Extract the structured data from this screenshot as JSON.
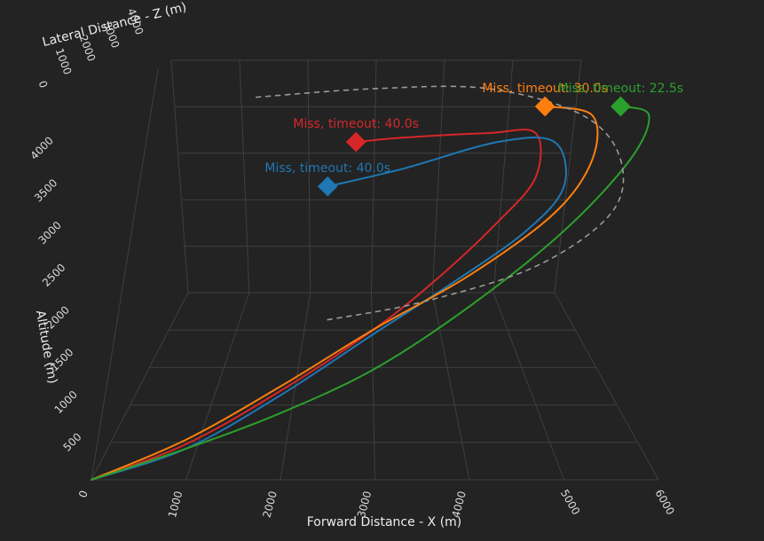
{
  "chart_data": {
    "type": "line3d",
    "axes": {
      "x": {
        "label": "Forward Distance - X (m)",
        "range": [
          0,
          6000
        ],
        "ticks": [
          0,
          1000,
          2000,
          3000,
          4000,
          5000,
          6000
        ]
      },
      "y": {
        "label": "Altitude (m)",
        "range": [
          0,
          4200
        ],
        "ticks": [
          0,
          500,
          1000,
          1500,
          2000,
          2500,
          3000,
          3500,
          4000
        ]
      },
      "z": {
        "label": "Lateral Distance - Z (m)",
        "range": [
          0,
          4200
        ],
        "ticks": [
          0,
          1000,
          2000,
          3000,
          4000
        ]
      }
    },
    "grid": true,
    "background": "#232323",
    "series": [
      {
        "color": "#d62728",
        "annotation": "Miss, timeout: 40.0s",
        "points": [
          {
            "x": 0,
            "y": 0
          },
          {
            "x": 1000,
            "y": 400
          },
          {
            "x": 2000,
            "y": 1000
          },
          {
            "x": 3000,
            "y": 1700
          },
          {
            "x": 3700,
            "y": 2300
          },
          {
            "x": 4300,
            "y": 2900
          },
          {
            "x": 4700,
            "y": 3400
          },
          {
            "x": 4700,
            "y": 3900
          },
          {
            "x": 4200,
            "y": 3900
          },
          {
            "x": 3300,
            "y": 3850
          },
          {
            "x": 2800,
            "y": 3800
          }
        ]
      },
      {
        "color": "#1f77b4",
        "annotation": "Miss, timeout: 40.0s",
        "points": [
          {
            "x": 0,
            "y": 0
          },
          {
            "x": 1000,
            "y": 350
          },
          {
            "x": 2000,
            "y": 950
          },
          {
            "x": 3000,
            "y": 1650
          },
          {
            "x": 3800,
            "y": 2200
          },
          {
            "x": 4600,
            "y": 2800
          },
          {
            "x": 5000,
            "y": 3300
          },
          {
            "x": 4900,
            "y": 3800
          },
          {
            "x": 4300,
            "y": 3800
          },
          {
            "x": 3300,
            "y": 3500
          },
          {
            "x": 2500,
            "y": 3300
          }
        ]
      },
      {
        "color": "#ff7f0e",
        "annotation": "Miss, timeout: 30.0s",
        "points": [
          {
            "x": 0,
            "y": 0
          },
          {
            "x": 1000,
            "y": 450
          },
          {
            "x": 2000,
            "y": 1050
          },
          {
            "x": 3000,
            "y": 1700
          },
          {
            "x": 4000,
            "y": 2300
          },
          {
            "x": 4900,
            "y": 3000
          },
          {
            "x": 5300,
            "y": 3600
          },
          {
            "x": 5300,
            "y": 4100
          },
          {
            "x": 4800,
            "y": 4200
          }
        ]
      },
      {
        "color": "#2ca02c",
        "annotation": "Miss, timeout: 22.5s",
        "points": [
          {
            "x": 0,
            "y": 0
          },
          {
            "x": 1000,
            "y": 350
          },
          {
            "x": 2000,
            "y": 750
          },
          {
            "x": 3000,
            "y": 1250
          },
          {
            "x": 4000,
            "y": 1950
          },
          {
            "x": 5000,
            "y": 2800
          },
          {
            "x": 5700,
            "y": 3600
          },
          {
            "x": 5900,
            "y": 4100
          },
          {
            "x": 5600,
            "y": 4200
          }
        ]
      },
      {
        "color": "#9a9a9a",
        "dashed": true,
        "points": [
          {
            "x": 2500,
            "y": 1800
          },
          {
            "x": 3500,
            "y": 2000
          },
          {
            "x": 4700,
            "y": 2400
          },
          {
            "x": 5500,
            "y": 3000
          },
          {
            "x": 5600,
            "y": 3600
          },
          {
            "x": 5200,
            "y": 4100
          },
          {
            "x": 4200,
            "y": 4400
          },
          {
            "x": 3000,
            "y": 4400
          },
          {
            "x": 1700,
            "y": 4300
          }
        ]
      }
    ]
  }
}
